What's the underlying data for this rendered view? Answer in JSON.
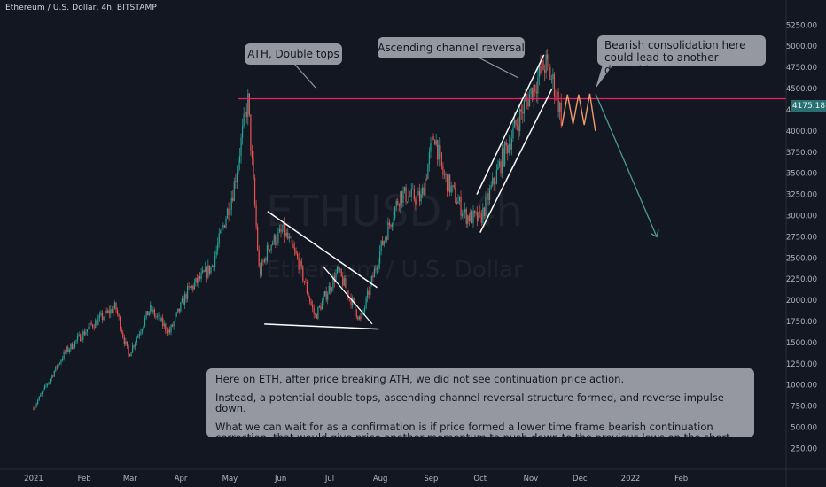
{
  "header": {
    "symbol_line": "Ethereum / U.S. Dollar, 4h, BITSTAMP"
  },
  "watermark": {
    "ticker": "ETHUSD, 4h",
    "name": "Ethereum / U.S. Dollar"
  },
  "price_tag": "4175.18",
  "callouts": {
    "ath": "ATH, Double tops",
    "channel": "Ascending channel reversal",
    "consolidation_line1": "Bearish consolidation here",
    "consolidation_line2": "could lead to another downside."
  },
  "note": {
    "p1": "Here on ETH, after price breaking ATH, we did not see continuation price action.",
    "p2": "Instead, a potential double tops, ascending channel reversal structure formed, and reverse impulse down.",
    "p3": "What we can wait for as a confirmation is if price formed a lower time frame bearish continuation correction, that would give price another momentum to push down to the previous lows on the short term."
  },
  "colors": {
    "up": "#26a69a",
    "down": "#ef5350",
    "ath_line": "#e91e63",
    "projection_up": "#ef9a6a",
    "projection_arrow": "#4c9a94",
    "background": "#131722",
    "axis_text": "#b2b5be"
  },
  "chart_data": {
    "type": "candlestick",
    "title": "Ethereum / U.S. Dollar, 4h, BITSTAMP",
    "ylim": [
      150,
      5400
    ],
    "y_ticks": [
      5250,
      5000,
      4750,
      4500,
      4250,
      4000,
      3750,
      3500,
      3250,
      3000,
      2750,
      2500,
      2250,
      2000,
      1750,
      1500,
      1250,
      1000,
      750,
      500,
      250
    ],
    "y_tick_labels": [
      "5250.00",
      "5000.00",
      "4750.00",
      "4500.00",
      "4250.00",
      "4000.00",
      "3750.00",
      "3500.00",
      "3250.00",
      "3000.00",
      "2750.00",
      "2500.00",
      "2250.00",
      "2000.00",
      "1750.00",
      "1500.00",
      "1250.00",
      "1000.00",
      "750.00",
      "500.00",
      "250.00"
    ],
    "x_ticks": [
      "2021",
      "Feb",
      "Mar",
      "Apr",
      "May",
      "Jun",
      "Jul",
      "Aug",
      "Sep",
      "Oct",
      "Nov",
      "Dec",
      "2022",
      "Feb"
    ],
    "last_price": 4175.18,
    "path_anchors": [
      [
        "2021-01-01",
        730
      ],
      [
        "2021-01-20",
        1380
      ],
      [
        "2021-02-05",
        1700
      ],
      [
        "2021-02-20",
        1920
      ],
      [
        "2021-02-28",
        1350
      ],
      [
        "2021-03-13",
        1900
      ],
      [
        "2021-03-25",
        1620
      ],
      [
        "2021-04-05",
        2100
      ],
      [
        "2021-04-20",
        2400
      ],
      [
        "2021-05-03",
        3300
      ],
      [
        "2021-05-12",
        4360
      ],
      [
        "2021-05-19",
        2300
      ],
      [
        "2021-05-25",
        2650
      ],
      [
        "2021-06-03",
        2820
      ],
      [
        "2021-06-12",
        2450
      ],
      [
        "2021-06-22",
        1800
      ],
      [
        "2021-07-06",
        2350
      ],
      [
        "2021-07-20",
        1750
      ],
      [
        "2021-08-01",
        2600
      ],
      [
        "2021-08-13",
        3250
      ],
      [
        "2021-08-26",
        3200
      ],
      [
        "2021-09-03",
        3980
      ],
      [
        "2021-09-08",
        3500
      ],
      [
        "2021-09-22",
        3000
      ],
      [
        "2021-10-01",
        2950
      ],
      [
        "2021-10-15",
        3700
      ],
      [
        "2021-10-28",
        4300
      ],
      [
        "2021-11-10",
        4800
      ],
      [
        "2021-11-16",
        4500
      ],
      [
        "2021-11-20",
        4150
      ]
    ],
    "channel_upper": [
      [
        "2021-09-29",
        3250
      ],
      [
        "2021-11-09",
        4900
      ]
    ],
    "channel_lower": [
      [
        "2021-10-01",
        2800
      ],
      [
        "2021-11-14",
        4500
      ]
    ],
    "triangle_upper": [
      [
        "2021-05-24",
        3050
      ],
      [
        "2021-07-30",
        2150
      ]
    ],
    "triangle_lower": [
      [
        "2021-05-22",
        1720
      ],
      [
        "2021-07-31",
        1660
      ]
    ],
    "ath_level": 4380,
    "projection_waves": [
      4060,
      4430,
      4080,
      4430,
      4070,
      4440,
      4000
    ],
    "projection_target": 2750
  }
}
